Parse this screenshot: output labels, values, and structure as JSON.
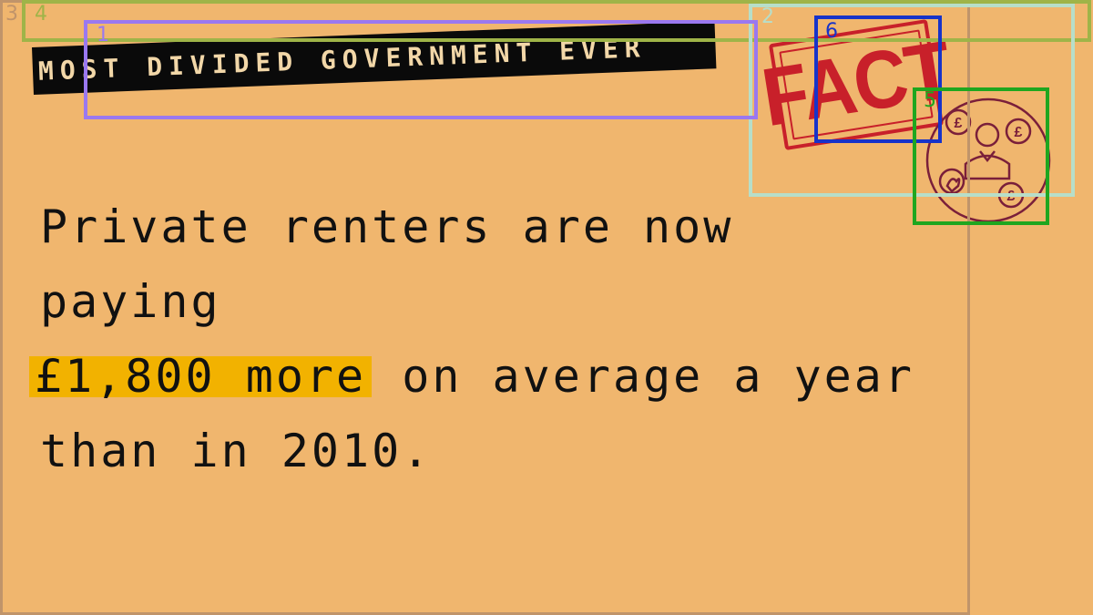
{
  "headline": "MOST DIVIDED GOVERNMENT EVER",
  "stamp": "FACT",
  "fact": {
    "before": "Private renters are now paying",
    "highlight": "£1,800 more",
    "after": "on average a year than in 2010."
  },
  "icon": "money-person-icon",
  "colors": {
    "background": "#f0b66e",
    "tape": "#0a0a0a",
    "stamp": "#c8202a",
    "highlight": "#f2b200",
    "icon": "#7a1f3a"
  },
  "annotations": {
    "box1": "1",
    "box2": "2",
    "box3": "3",
    "box4": "4",
    "box5": "5",
    "box6": "6"
  }
}
